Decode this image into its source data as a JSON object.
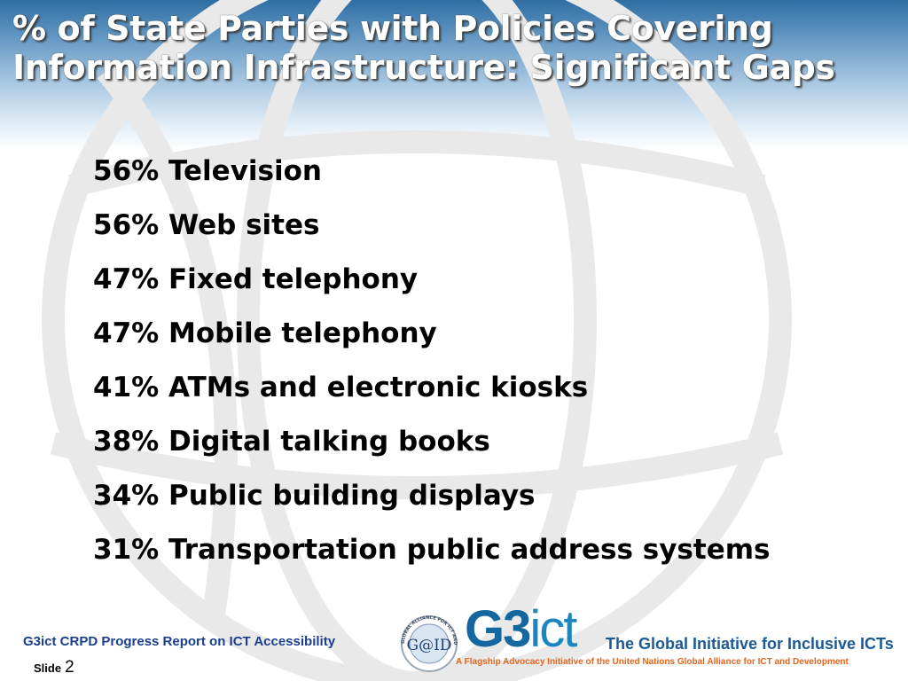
{
  "slide": {
    "title_line1": "% of State Parties with Policies Covering",
    "title_line2": "Information Infrastructure: Significant Gaps",
    "items": [
      "56% Television",
      "56% Web sites",
      "47% Fixed telephony",
      "47% Mobile telephony",
      "41% ATMs and electronic kiosks",
      "38% Digital talking books",
      "34% Public building displays",
      "31% Transportation public address systems"
    ]
  },
  "footer": {
    "report_title": "G3ict CRPD Progress Report on ICT Accessibility",
    "slide_label": "Slide",
    "slide_number": "2"
  },
  "logo": {
    "gaid_text": "G@ID",
    "gaid_ring_text": "GLOBAL ALLIANCE FOR ICT AND DEVELOPMENT",
    "g3_part": "G3",
    "ict_part": "ict",
    "tagline": "The Global Initiative for Inclusive ICTs",
    "subtitle": "A Flagship Advocacy Initiative of the United Nations Global Alliance for ICT and Development"
  },
  "colors": {
    "title_text": "#ffffff",
    "header_top": "#2f6ea3",
    "footer_text": "#1b3f8c",
    "logo_blue": "#14679f",
    "subtitle_orange": "#e6641a"
  }
}
